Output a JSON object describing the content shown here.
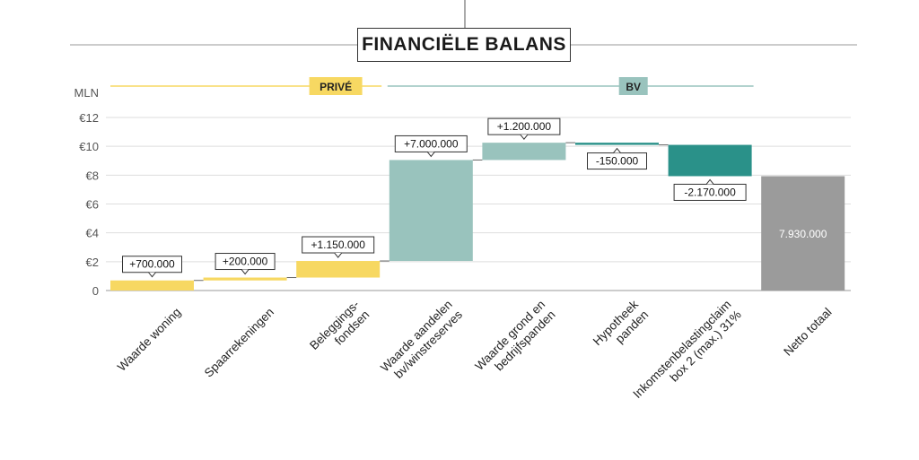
{
  "title": "FINANCIËLE BALANS",
  "groups": [
    {
      "label": "PRIVÉ",
      "from": 0,
      "to": 2,
      "color": "#f7d862"
    },
    {
      "label": "BV",
      "from": 3,
      "to": 6,
      "color": "#99c3bd"
    }
  ],
  "chart_data": {
    "type": "waterfall",
    "title": "FINANCIËLE BALANS",
    "ylabel": "MLN",
    "ylim": [
      0,
      12
    ],
    "yticks": [
      {
        "value": 0,
        "label": "0"
      },
      {
        "value": 2,
        "label": "€2"
      },
      {
        "value": 4,
        "label": "€4"
      },
      {
        "value": 6,
        "label": "€6"
      },
      {
        "value": 8,
        "label": "€8"
      },
      {
        "value": 10,
        "label": "€10"
      },
      {
        "value": 12,
        "label": "€12"
      }
    ],
    "categories": [
      [
        "Waarde woning"
      ],
      [
        "Spaarrekeningen"
      ],
      [
        "Beleggings-",
        "fondsen"
      ],
      [
        "Waarde aandelen",
        "bv/winstreserves"
      ],
      [
        "Waarde grond en",
        "bedrijfspanden"
      ],
      [
        "Hypotheek",
        "panden"
      ],
      [
        "Inkomstenbelastingclaim",
        "box 2 (max.) 31%"
      ],
      [
        "Netto totaal"
      ]
    ],
    "values": [
      0.7,
      0.2,
      1.15,
      7.0,
      1.2,
      -0.15,
      -2.17,
      7.93
    ],
    "labels": [
      "+700.000",
      "+200.000",
      "+1.150.000",
      "+7.000.000",
      "+1.200.000",
      "-150.000",
      "-2.170.000",
      "7.930.000"
    ],
    "colors": [
      "#f7d862",
      "#f7d862",
      "#f7d862",
      "#99c3bd",
      "#99c3bd",
      "#2a9189",
      "#2a9189",
      "#9b9b9b"
    ],
    "total_index": 7
  }
}
